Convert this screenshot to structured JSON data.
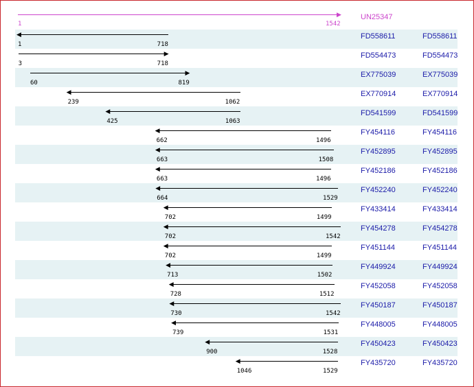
{
  "colors": {
    "border": "#c8262c",
    "row_shade": "#e6f2f4",
    "link": "#1a1aa8",
    "reference": "#cc44cc"
  },
  "reference": {
    "id": "UN25347",
    "start": 1,
    "end": 1542,
    "start_label": "1",
    "end_label": "1542"
  },
  "alignments": [
    {
      "id": "FD558611",
      "id2": "FD558611",
      "start": 1,
      "end": 718,
      "start_label": "1",
      "end_label": "718",
      "direction": "reverse"
    },
    {
      "id": "FD554473",
      "id2": "FD554473",
      "start": 3,
      "end": 718,
      "start_label": "3",
      "end_label": "718",
      "direction": "forward"
    },
    {
      "id": "EX775039",
      "id2": "EX775039",
      "start": 60,
      "end": 819,
      "start_label": "60",
      "end_label": "819",
      "direction": "forward"
    },
    {
      "id": "EX770914",
      "id2": "EX770914",
      "start": 239,
      "end": 1062,
      "start_label": "239",
      "end_label": "1062",
      "direction": "reverse"
    },
    {
      "id": "FD541599",
      "id2": "FD541599",
      "start": 425,
      "end": 1063,
      "start_label": "425",
      "end_label": "1063",
      "direction": "reverse"
    },
    {
      "id": "FY454116",
      "id2": "FY454116",
      "start": 662,
      "end": 1496,
      "start_label": "662",
      "end_label": "1496",
      "direction": "reverse"
    },
    {
      "id": "FY452895",
      "id2": "FY452895",
      "start": 663,
      "end": 1508,
      "start_label": "663",
      "end_label": "1508",
      "direction": "reverse"
    },
    {
      "id": "FY452186",
      "id2": "FY452186",
      "start": 663,
      "end": 1496,
      "start_label": "663",
      "end_label": "1496",
      "direction": "reverse"
    },
    {
      "id": "FY452240",
      "id2": "FY452240",
      "start": 664,
      "end": 1529,
      "start_label": "664",
      "end_label": "1529",
      "direction": "reverse"
    },
    {
      "id": "FY433414",
      "id2": "FY433414",
      "start": 702,
      "end": 1499,
      "start_label": "702",
      "end_label": "1499",
      "direction": "reverse"
    },
    {
      "id": "FY454278",
      "id2": "FY454278",
      "start": 702,
      "end": 1542,
      "start_label": "702",
      "end_label": "1542",
      "direction": "reverse"
    },
    {
      "id": "FY451144",
      "id2": "FY451144",
      "start": 702,
      "end": 1499,
      "start_label": "702",
      "end_label": "1499",
      "direction": "reverse"
    },
    {
      "id": "FY449924",
      "id2": "FY449924",
      "start": 713,
      "end": 1502,
      "start_label": "713",
      "end_label": "1502",
      "direction": "reverse"
    },
    {
      "id": "FY452058",
      "id2": "FY452058",
      "start": 728,
      "end": 1512,
      "start_label": "728",
      "end_label": "1512",
      "direction": "reverse"
    },
    {
      "id": "FY450187",
      "id2": "FY450187",
      "start": 730,
      "end": 1542,
      "start_label": "730",
      "end_label": "1542",
      "direction": "reverse"
    },
    {
      "id": "FY448005",
      "id2": "FY448005",
      "start": 739,
      "end": 1531,
      "start_label": "739",
      "end_label": "1531",
      "direction": "reverse"
    },
    {
      "id": "FY450423",
      "id2": "FY450423",
      "start": 900,
      "end": 1528,
      "start_label": "900",
      "end_label": "1528",
      "direction": "reverse"
    },
    {
      "id": "FY435720",
      "id2": "FY435720",
      "start": 1046,
      "end": 1529,
      "start_label": "1046",
      "end_label": "1529",
      "direction": "reverse"
    }
  ]
}
